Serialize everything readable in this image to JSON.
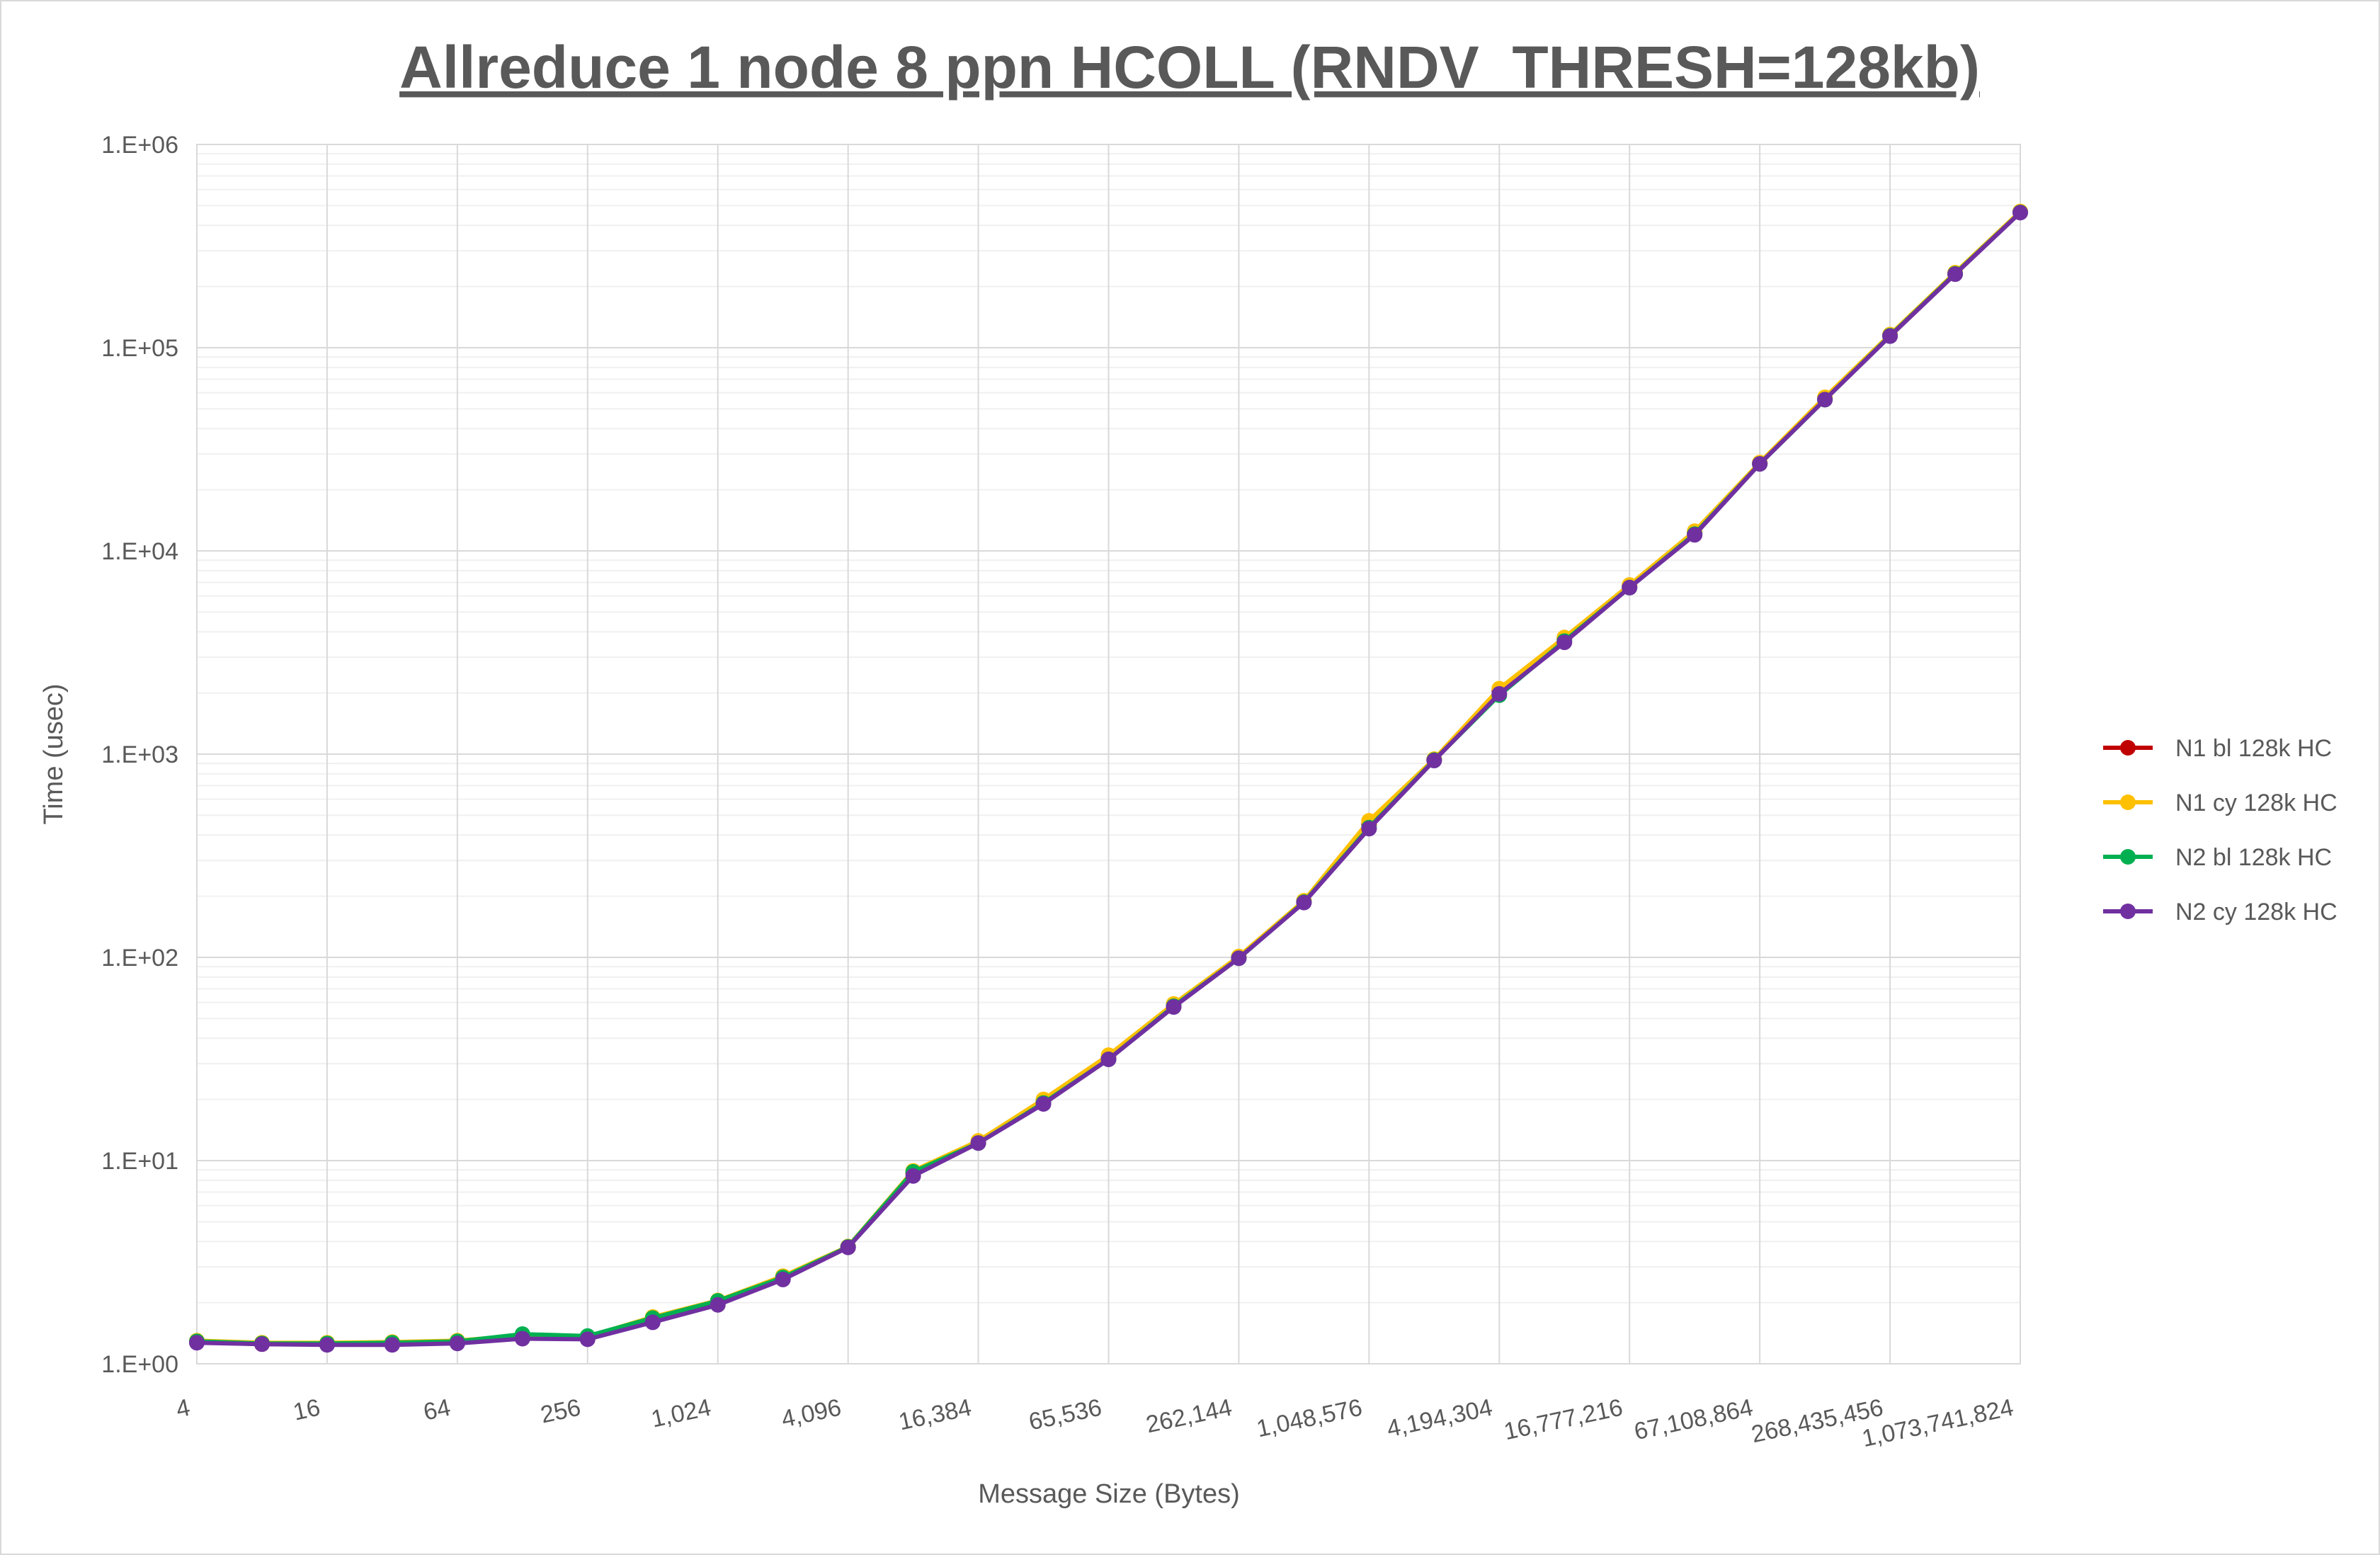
{
  "chart_data": {
    "type": "line",
    "title": "Allreduce 1 node 8 ppn HCOLL (RNDV_THRESH=128kb)",
    "xlabel": "Message Size (Bytes)",
    "ylabel": "Time (usec)",
    "y_scale": "log",
    "x_scale": "log2",
    "ylim": [
      1,
      1000000
    ],
    "xlim": [
      4,
      1073741824
    ],
    "y_ticks": [
      "1.E+00",
      "1.E+01",
      "1.E+02",
      "1.E+03",
      "1.E+04",
      "1.E+05",
      "1.E+06"
    ],
    "x_ticks": [
      "4",
      "16",
      "64",
      "256",
      "1,024",
      "4,096",
      "16,384",
      "65,536",
      "262,144",
      "1,048,576",
      "4,194,304",
      "16,777,216",
      "67,108,864",
      "268,435,456",
      "1,073,741,824"
    ],
    "grid": true,
    "legend_position": "right",
    "x": [
      4,
      8,
      16,
      32,
      64,
      128,
      256,
      512,
      1024,
      2048,
      4096,
      8192,
      16384,
      32768,
      65536,
      131072,
      262144,
      524288,
      1048576,
      2097152,
      4194304,
      8388608,
      16777216,
      33554432,
      67108864,
      134217728,
      268435456,
      536870912,
      1073741824
    ],
    "series": [
      {
        "name": "N1 bl 128k HC",
        "color": "#c00000",
        "values": [
          1.28,
          1.25,
          1.25,
          1.26,
          1.28,
          1.36,
          1.34,
          1.65,
          2.02,
          2.65,
          3.75,
          8.7,
          12.3,
          19.5,
          32,
          58,
          100,
          188,
          450,
          940,
          2050,
          3700,
          6700,
          12300,
          27000,
          56000,
          115000,
          232000,
          465000
        ]
      },
      {
        "name": "N1 cy 128k HC",
        "color": "#ffc000",
        "values": [
          1.3,
          1.27,
          1.27,
          1.28,
          1.3,
          1.38,
          1.36,
          1.7,
          2.05,
          2.7,
          3.78,
          8.9,
          12.5,
          20,
          33,
          59,
          101,
          190,
          470,
          945,
          2100,
          3750,
          6800,
          12500,
          27200,
          57000,
          116000,
          234000,
          468000
        ]
      },
      {
        "name": "N2 bl 128k HC",
        "color": "#00b050",
        "values": [
          1.29,
          1.26,
          1.26,
          1.27,
          1.29,
          1.4,
          1.37,
          1.68,
          2.04,
          2.66,
          3.76,
          8.8,
          12.2,
          19.2,
          31.5,
          57.5,
          99,
          187,
          435,
          935,
          1950,
          3600,
          6600,
          12100,
          26800,
          55500,
          114500,
          231000,
          463000
        ]
      },
      {
        "name": "N2 cy 128k HC",
        "color": "#7030a0",
        "values": [
          1.27,
          1.25,
          1.24,
          1.24,
          1.26,
          1.33,
          1.32,
          1.6,
          1.95,
          2.6,
          3.74,
          8.4,
          12.2,
          19,
          31.5,
          57,
          99,
          186,
          430,
          930,
          1980,
          3550,
          6600,
          12000,
          26800,
          55500,
          114000,
          230000,
          462000
        ]
      }
    ]
  }
}
